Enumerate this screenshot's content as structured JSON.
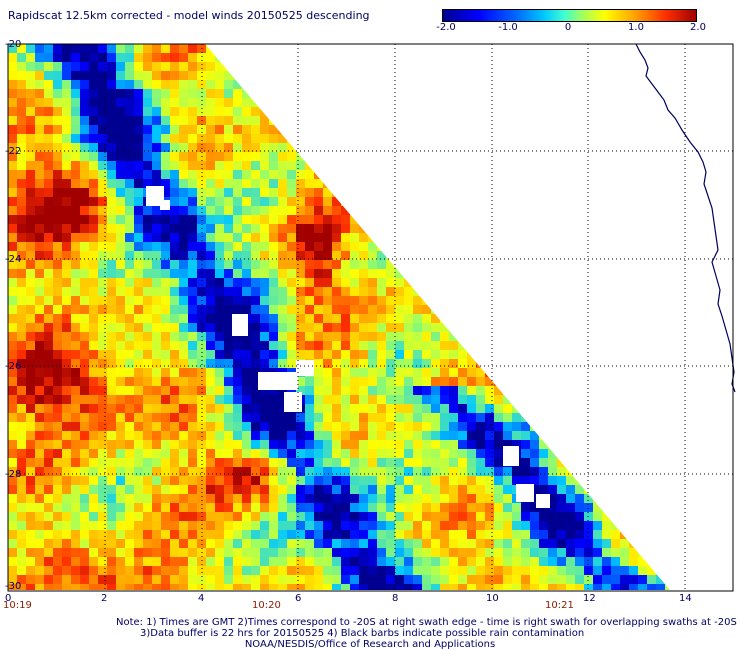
{
  "title": "Rapidscat 12.5km corrected - model winds 20150525 descending",
  "colorbar": {
    "ticks": [
      "-2.0",
      "-1.0",
      "0",
      "1.0",
      "2.0"
    ],
    "values": [
      -2.0,
      -1.0,
      0,
      1.0,
      2.0
    ],
    "colors": [
      "#000090",
      "#0000ff",
      "#00c8ff",
      "#a0ff60",
      "#ffff00",
      "#ffa000",
      "#ff3000",
      "#a00000"
    ]
  },
  "axes": {
    "y_ticks": [
      "-20",
      "-22",
      "-24",
      "-26",
      "-28",
      "-30"
    ],
    "x_ticks": [
      "0",
      "2",
      "4",
      "6",
      "8",
      "10",
      "12",
      "14"
    ],
    "time_labels": [
      "10:19",
      "10:20",
      "10:21"
    ]
  },
  "notes": {
    "line1": "Note: 1) Times are GMT 2)Times correspond to -20S at right swath edge - time is right swath for overlapping swaths at -20S",
    "line2": "3)Data buffer is 22 hrs for 20150525 4) Black barbs indicate possible rain contamination",
    "line3": "NOAA/NESDIS/Office of Research and Applications"
  }
}
